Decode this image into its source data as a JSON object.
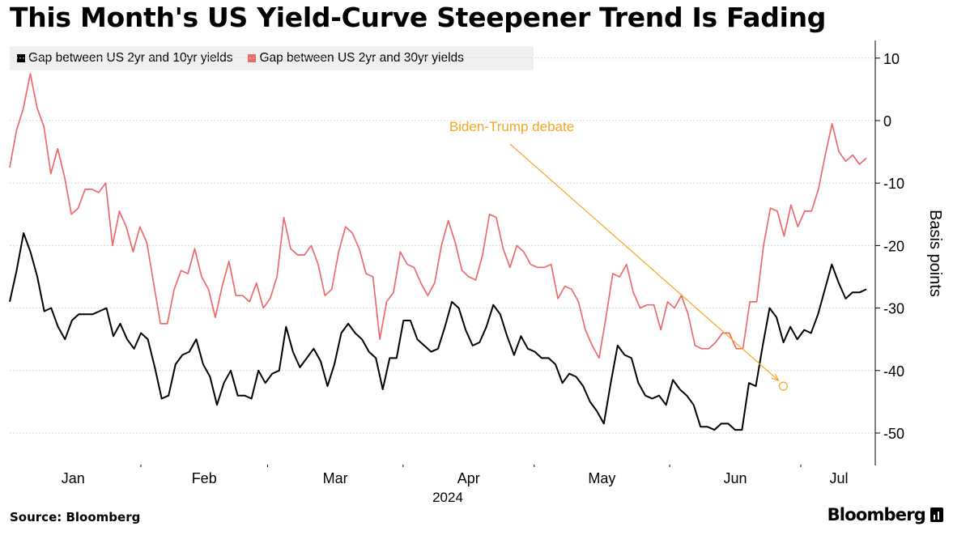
{
  "title": "This Month's US Yield-Curve Steepener Trend Is Fading",
  "source": "Source: Bloomberg",
  "brand": "Bloomberg",
  "chart_data": {
    "type": "line",
    "ylabel": "Basis points",
    "ylim": [
      -55,
      13
    ],
    "yticks": [
      10,
      0,
      -10,
      -20,
      -30,
      -40,
      -50
    ],
    "year_label": "2024",
    "months": [
      "Jan",
      "Feb",
      "Mar",
      "Apr",
      "May",
      "Jun",
      "Jul"
    ],
    "x_start": "2024-01-02",
    "x_end": "2024-07-16",
    "legend_position": "top-left",
    "colors": {
      "series1": "#000000",
      "series2": "#ec6a6c",
      "annotation": "#f5a623",
      "grid": "#d9d9d9"
    },
    "annotation": {
      "text": "Biden-Trump debate",
      "date": "2024-06-27",
      "value": -42.5
    },
    "series": [
      {
        "name": "Gap between US 2yr and 10yr yields",
        "color": "#000000",
        "values": [
          -29,
          -24,
          -18,
          -21,
          -25,
          -30.5,
          -30,
          -33,
          -35,
          -32,
          -31,
          -31,
          -31,
          -30.5,
          -30,
          -34.5,
          -32.5,
          -35,
          -36.5,
          -34,
          -35,
          -39.5,
          -44.5,
          -44,
          -39,
          -37.5,
          -37,
          -35,
          -39,
          -41,
          -45.5,
          -42,
          -40,
          -44,
          -44,
          -44.5,
          -40,
          -42,
          -40.5,
          -40,
          -33,
          -37,
          -39.5,
          -38,
          -36.5,
          -38.5,
          -42.5,
          -39,
          -34,
          -32.5,
          -34,
          -35,
          -37,
          -38,
          -43,
          -38,
          -38,
          -32,
          -32,
          -35,
          -36,
          -37,
          -36.5,
          -33,
          -29,
          -30,
          -33.5,
          -36,
          -35.5,
          -33,
          -29.5,
          -31,
          -34.5,
          -37.5,
          -34.5,
          -36.5,
          -37,
          -38,
          -38,
          -39,
          -42,
          -40.5,
          -41,
          -42.5,
          -45,
          -46.5,
          -48.5,
          -42,
          -36,
          -37.5,
          -38,
          -42,
          -44,
          -44.5,
          -44,
          -45.5,
          -41.5,
          -43,
          -44,
          -45.5,
          -49,
          -49,
          -49.5,
          -48.5,
          -48.5,
          -49.5,
          -49.5,
          -42,
          -42.5,
          -36,
          -30,
          -31.5,
          -35.5,
          -33,
          -35,
          -33.5,
          -34,
          -31,
          -27,
          -23,
          -26,
          -28.5,
          -27.5,
          -27.5,
          -27
        ]
      },
      {
        "name": "Gap between US 2yr and 30yr yields",
        "color": "#ec6a6c",
        "values": [
          -7.5,
          -1.5,
          2,
          7.5,
          2,
          -1,
          -8.5,
          -4.5,
          -9,
          -15,
          -14,
          -11,
          -11,
          -11.5,
          -10,
          -20,
          -14.5,
          -17,
          -21,
          -17,
          -19.5,
          -26,
          -32.5,
          -32.5,
          -27,
          -24,
          -24.5,
          -20.5,
          -25,
          -27,
          -31.5,
          -26.5,
          -22.5,
          -28,
          -28,
          -29,
          -26,
          -30,
          -28.5,
          -25,
          -15.5,
          -20.5,
          -21.5,
          -21.5,
          -20,
          -23,
          -28,
          -27,
          -21,
          -17,
          -18,
          -20.5,
          -24.5,
          -25,
          -35,
          -29,
          -27.5,
          -21,
          -23,
          -23.5,
          -26,
          -28,
          -26,
          -20,
          -16,
          -19.5,
          -24,
          -25,
          -25.5,
          -21.5,
          -15,
          -15.5,
          -20.5,
          -23.5,
          -20,
          -21,
          -23,
          -23.5,
          -23.5,
          -23,
          -28.5,
          -26.5,
          -27,
          -29,
          -33.5,
          -36,
          -38,
          -31.5,
          -24.5,
          -25,
          -23,
          -27.5,
          -30,
          -29.5,
          -29.5,
          -33.5,
          -29,
          -30,
          -28,
          -31,
          -36,
          -36.5,
          -36.5,
          -35.5,
          -34,
          -34,
          -36.5,
          -36.5,
          -29,
          -29,
          -20,
          -14,
          -14.5,
          -18.5,
          -13.5,
          -17,
          -14.5,
          -14.5,
          -11,
          -5.5,
          -0.5,
          -5,
          -6.5,
          -5.5,
          -7,
          -6
        ]
      }
    ]
  }
}
